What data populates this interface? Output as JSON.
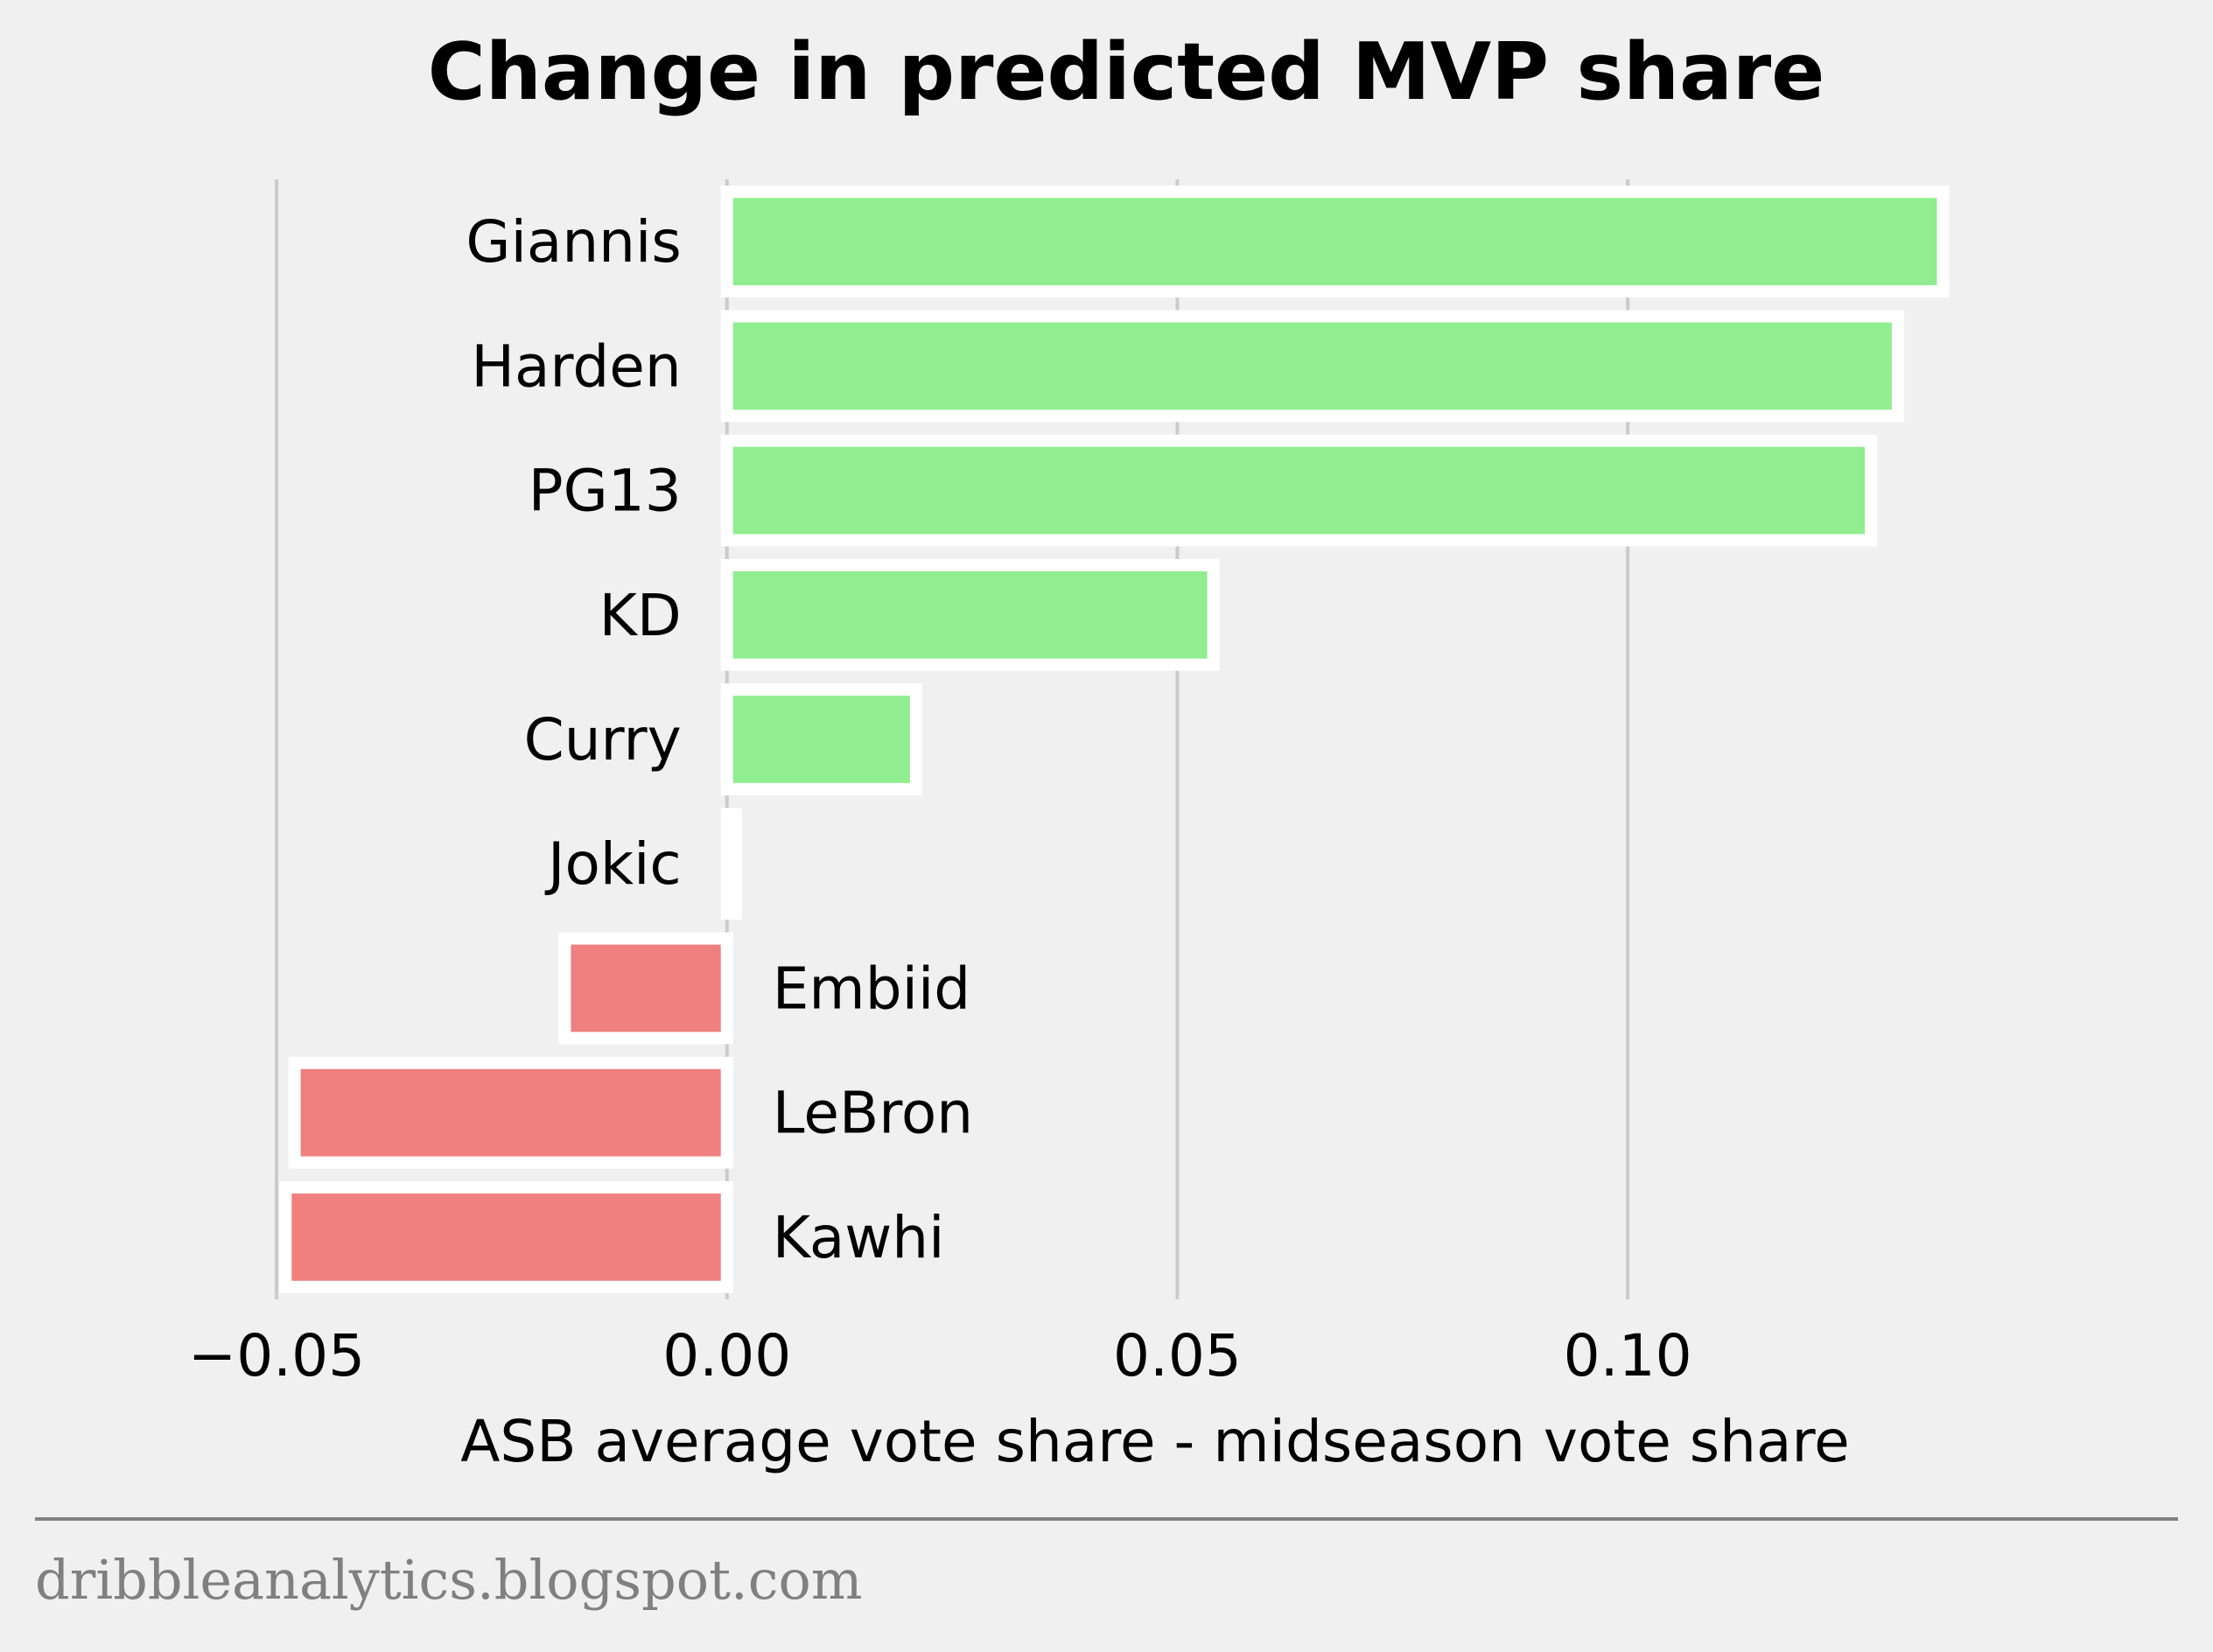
{
  "chart_data": {
    "type": "bar",
    "orientation": "horizontal",
    "title": "Change in predicted MVP share",
    "xlabel": "ASB average vote share - midseason vote share",
    "ylabel": "",
    "xlim": [
      -0.0535,
      0.1505
    ],
    "xticks": [
      -0.05,
      0.0,
      0.05,
      0.1
    ],
    "xtick_labels": [
      "−0.05",
      "0.00",
      "0.05",
      "0.10"
    ],
    "grid": "vertical",
    "categories": [
      "Giannis",
      "Harden",
      "PG13",
      "KD",
      "Curry",
      "Jokic",
      "Embiid",
      "LeBron",
      "Kawhi"
    ],
    "values": [
      0.135,
      0.13,
      0.127,
      0.054,
      0.021,
      0.001,
      -0.018,
      -0.048,
      -0.049
    ],
    "colors": {
      "positive": "#90ee90",
      "negative": "#f08080",
      "bar_edge": "#ffffff",
      "grid": "#cbcbcb",
      "background": "#f0f0f0",
      "footer_line": "#808080",
      "source_text": "#808080"
    }
  },
  "footer": {
    "source": "dribbleanalytics.blogspot.com"
  }
}
